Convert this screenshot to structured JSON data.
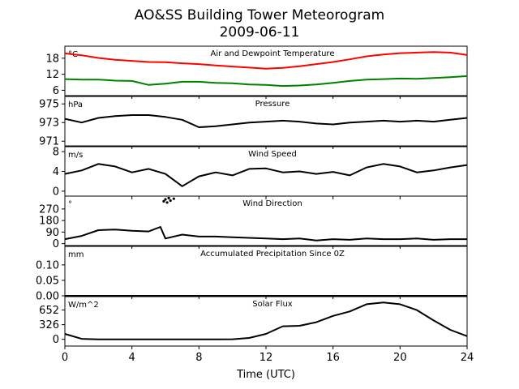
{
  "figure": {
    "title": "AO&SS Building Tower Meteorogram",
    "subtitle": "2009-06-11",
    "xlabel": "Time (UTC)",
    "xlim": [
      0,
      24
    ],
    "xticks": [
      0,
      4,
      8,
      12,
      16,
      20,
      24
    ]
  },
  "chart_data": [
    {
      "type": "line",
      "title": "Air and Dewpoint Temperature",
      "unit": "°C",
      "ylim": [
        4,
        22.5
      ],
      "yticks": [
        6,
        12,
        18
      ],
      "series": [
        {
          "color": "#ff0000",
          "x": [
            0,
            1,
            2,
            3,
            4,
            5,
            6,
            7,
            8,
            9,
            10,
            11,
            12,
            13,
            14,
            15,
            16,
            17,
            18,
            19,
            20,
            21,
            22,
            23,
            24
          ],
          "y": [
            19.8,
            19.1,
            18.1,
            17.4,
            17.0,
            16.6,
            16.5,
            16.1,
            15.8,
            15.3,
            14.9,
            14.5,
            14.1,
            14.4,
            15.0,
            15.8,
            16.6,
            17.6,
            18.7,
            19.4,
            19.9,
            20.1,
            20.3,
            20.1,
            19.2
          ]
        },
        {
          "color": "#008000",
          "x": [
            0,
            1,
            2,
            3,
            4,
            5,
            6,
            7,
            8,
            9,
            10,
            11,
            12,
            13,
            14,
            15,
            16,
            17,
            18,
            19,
            20,
            21,
            22,
            23,
            24
          ],
          "y": [
            10.2,
            10.0,
            10.0,
            9.6,
            9.5,
            8.0,
            8.5,
            9.2,
            9.2,
            8.8,
            8.6,
            8.2,
            8.0,
            7.6,
            7.8,
            8.2,
            8.8,
            9.5,
            10.0,
            10.2,
            10.4,
            10.3,
            10.6,
            10.9,
            11.3
          ]
        }
      ]
    },
    {
      "type": "line",
      "title": "Pressure",
      "unit": "hPa",
      "ylim": [
        970.5,
        975.8
      ],
      "yticks": [
        971,
        973,
        975
      ],
      "series": [
        {
          "color": "#000000",
          "x": [
            0,
            1,
            2,
            3,
            4,
            5,
            6,
            7,
            8,
            9,
            10,
            11,
            12,
            13,
            14,
            15,
            16,
            17,
            18,
            19,
            20,
            21,
            22,
            23,
            24
          ],
          "y": [
            973.4,
            973.0,
            973.5,
            973.7,
            973.8,
            973.8,
            973.6,
            973.3,
            972.5,
            972.6,
            972.8,
            973.0,
            973.1,
            973.2,
            973.1,
            972.9,
            972.8,
            973.0,
            973.1,
            973.2,
            973.1,
            973.2,
            973.1,
            973.3,
            973.5
          ]
        }
      ]
    },
    {
      "type": "line",
      "title": "Wind Speed",
      "unit": "m/s",
      "ylim": [
        -1,
        9
      ],
      "yticks": [
        0,
        4,
        8
      ],
      "series": [
        {
          "color": "#000000",
          "x": [
            0,
            1,
            2,
            3,
            4,
            5,
            6,
            7,
            8,
            9,
            10,
            11,
            12,
            13,
            14,
            15,
            16,
            17,
            18,
            19,
            20,
            21,
            22,
            23,
            24
          ],
          "y": [
            3.5,
            4.2,
            5.5,
            5.0,
            3.8,
            4.5,
            3.5,
            1.0,
            3.0,
            3.8,
            3.2,
            4.5,
            4.6,
            3.8,
            4.0,
            3.5,
            3.9,
            3.2,
            4.8,
            5.5,
            5.0,
            3.8,
            4.2,
            4.8,
            5.3
          ]
        }
      ]
    },
    {
      "type": "line",
      "title": "Wind Direction",
      "unit": "°",
      "ylim": [
        -15,
        370
      ],
      "yticks": [
        0,
        90,
        180,
        270
      ],
      "series": [
        {
          "color": "#000000",
          "x": [
            0,
            1,
            2,
            3,
            4,
            5,
            5.7,
            6,
            7,
            8,
            9,
            10,
            11,
            12,
            13,
            14,
            15,
            16,
            17,
            18,
            19,
            20,
            21,
            22,
            23,
            24
          ],
          "y": [
            35,
            60,
            105,
            110,
            100,
            95,
            130,
            40,
            70,
            55,
            55,
            50,
            45,
            40,
            35,
            40,
            25,
            35,
            30,
            40,
            35,
            35,
            40,
            30,
            35,
            35
          ]
        },
        {
          "color": "#000000",
          "x": [
            5.9,
            6.0,
            6.1,
            6.2,
            6.3,
            6.5
          ],
          "y": [
            330,
            345,
            320,
            355,
            335,
            350
          ]
        }
      ]
    },
    {
      "type": "line",
      "title": "Accumulated Precipitation Since 0Z",
      "unit": "mm",
      "ylim": [
        0,
        0.16
      ],
      "yticks": [
        0.0,
        0.05,
        0.1
      ],
      "ytick_labels": [
        "0.00",
        "0.05",
        "0.10"
      ],
      "series": [
        {
          "color": "#000000",
          "x": [
            0,
            24
          ],
          "y": [
            0,
            0
          ]
        }
      ]
    },
    {
      "type": "line",
      "title": "Solar Flux",
      "unit": "W/m^2",
      "ylim": [
        -150,
        950
      ],
      "yticks": [
        0,
        326,
        652
      ],
      "series": [
        {
          "color": "#000000",
          "x": [
            0,
            1,
            2,
            3,
            4,
            5,
            6,
            7,
            8,
            9,
            10,
            11,
            12,
            13,
            14,
            15,
            16,
            17,
            18,
            19,
            20,
            21,
            22,
            23,
            24
          ],
          "y": [
            120,
            10,
            0,
            0,
            0,
            0,
            0,
            0,
            0,
            0,
            2,
            30,
            120,
            290,
            300,
            380,
            520,
            620,
            780,
            820,
            780,
            650,
            420,
            210,
            70
          ]
        }
      ]
    }
  ]
}
